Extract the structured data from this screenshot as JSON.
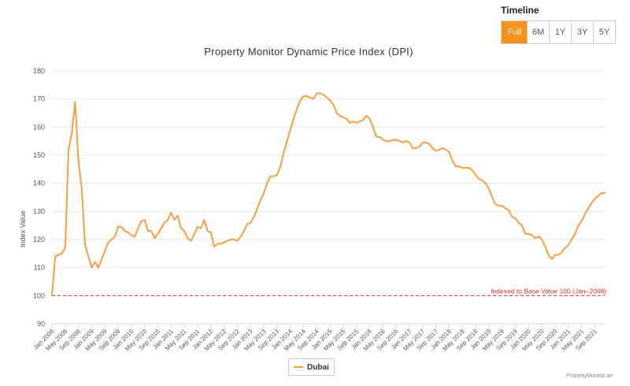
{
  "timeline": {
    "label": "Timeline",
    "buttons": [
      "Full",
      "6M",
      "1Y",
      "3Y",
      "5Y"
    ],
    "active": "Full"
  },
  "credit": "PropertyMonitor.ae",
  "colors": {
    "series": "#f0a04b",
    "baseline": "#d0342c",
    "active_button": "#f7931e"
  },
  "chart_data": {
    "type": "line",
    "title": "Property Monitor Dynamic Price Index (DPI)",
    "ylabel": "Index Value",
    "xlabel": "",
    "ylim": [
      90,
      180
    ],
    "yticks": [
      90,
      100,
      110,
      120,
      130,
      140,
      150,
      160,
      170,
      180
    ],
    "xlim": [
      "2008-01",
      "2021-12"
    ],
    "xticks": [
      "Jan 2008",
      "May 2008",
      "Sep 2008",
      "Jan 2009",
      "May 2009",
      "Sep 2009",
      "Jan 2010",
      "May 2010",
      "Sep 2010",
      "Jan 2011",
      "May 2011",
      "Sep 2011",
      "Jan 2012",
      "May 2012",
      "Sep 2012",
      "Jan 2013",
      "May 2013",
      "Sep 2013",
      "Jan 2014",
      "May 2014",
      "Sep 2014",
      "Jan 2015",
      "May 2015",
      "Sep 2015",
      "Jan 2016",
      "May 2016",
      "Sep 2016",
      "Jan 2017",
      "May 2017",
      "Sep 2017",
      "Jan 2018",
      "May 2018",
      "Sep 2018",
      "Jan 2019",
      "May 2019",
      "Sep 2019",
      "Jan 2020",
      "May 2020",
      "Sep 2020",
      "Jan 2021",
      "May 2021",
      "Sep 2021"
    ],
    "grid": true,
    "legend": "bottom-center",
    "baseline": {
      "value": 100,
      "label": "Indexed to Base Value 100 (Jan–2008)"
    },
    "series": [
      {
        "name": "Dubai",
        "points": [
          [
            "2008-01",
            100
          ],
          [
            "2008-02",
            114
          ],
          [
            "2008-03",
            114.5
          ],
          [
            "2008-04",
            115
          ],
          [
            "2008-05",
            117
          ],
          [
            "2008-06",
            152
          ],
          [
            "2008-07",
            158
          ],
          [
            "2008-08",
            169
          ],
          [
            "2008-09",
            148
          ],
          [
            "2008-10",
            138
          ],
          [
            "2008-11",
            118
          ],
          [
            "2008-12",
            114
          ],
          [
            "2009-01",
            110
          ],
          [
            "2009-02",
            112
          ],
          [
            "2009-03",
            110
          ],
          [
            "2009-04",
            113
          ],
          [
            "2009-05",
            116
          ],
          [
            "2009-06",
            119
          ],
          [
            "2009-07",
            120
          ],
          [
            "2009-08",
            121
          ],
          [
            "2009-09",
            124.5
          ],
          [
            "2009-10",
            124.5
          ],
          [
            "2009-11",
            123
          ],
          [
            "2009-12",
            122.5
          ],
          [
            "2010-01",
            121.5
          ],
          [
            "2010-02",
            121
          ],
          [
            "2010-03",
            124
          ],
          [
            "2010-04",
            126.5
          ],
          [
            "2010-05",
            127
          ],
          [
            "2010-06",
            123
          ],
          [
            "2010-07",
            123
          ],
          [
            "2010-08",
            120.5
          ],
          [
            "2010-09",
            122
          ],
          [
            "2010-10",
            124
          ],
          [
            "2010-11",
            126
          ],
          [
            "2010-12",
            127
          ],
          [
            "2011-01",
            129.5
          ],
          [
            "2011-02",
            127
          ],
          [
            "2011-03",
            128.5
          ],
          [
            "2011-04",
            124
          ],
          [
            "2011-05",
            123
          ],
          [
            "2011-06",
            120.5
          ],
          [
            "2011-07",
            119.5
          ],
          [
            "2011-08",
            122
          ],
          [
            "2011-09",
            124.5
          ],
          [
            "2011-10",
            124
          ],
          [
            "2011-11",
            127
          ],
          [
            "2011-12",
            123
          ],
          [
            "2012-01",
            122.5
          ],
          [
            "2012-02",
            117.5
          ],
          [
            "2012-03",
            118.5
          ],
          [
            "2012-04",
            118.5
          ],
          [
            "2012-05",
            119
          ],
          [
            "2012-06",
            119.5
          ],
          [
            "2012-07",
            120
          ],
          [
            "2012-08",
            120
          ],
          [
            "2012-09",
            119.5
          ],
          [
            "2012-10",
            121
          ],
          [
            "2012-11",
            123
          ],
          [
            "2012-12",
            125.5
          ],
          [
            "2013-01",
            126
          ],
          [
            "2013-02",
            128
          ],
          [
            "2013-03",
            131
          ],
          [
            "2013-04",
            134
          ],
          [
            "2013-05",
            136.5
          ],
          [
            "2013-06",
            140
          ],
          [
            "2013-07",
            142.5
          ],
          [
            "2013-08",
            142.5
          ],
          [
            "2013-09",
            143
          ],
          [
            "2013-10",
            146
          ],
          [
            "2013-11",
            151
          ],
          [
            "2013-12",
            155
          ],
          [
            "2014-01",
            159
          ],
          [
            "2014-02",
            163
          ],
          [
            "2014-03",
            166.5
          ],
          [
            "2014-04",
            169.5
          ],
          [
            "2014-05",
            171
          ],
          [
            "2014-06",
            171
          ],
          [
            "2014-07",
            170.5
          ],
          [
            "2014-08",
            170
          ],
          [
            "2014-09",
            172
          ],
          [
            "2014-10",
            172
          ],
          [
            "2014-11",
            171.5
          ],
          [
            "2014-12",
            170.5
          ],
          [
            "2015-01",
            169.5
          ],
          [
            "2015-02",
            168
          ],
          [
            "2015-03",
            165
          ],
          [
            "2015-04",
            164
          ],
          [
            "2015-05",
            163.5
          ],
          [
            "2015-06",
            163
          ],
          [
            "2015-07",
            161.5
          ],
          [
            "2015-08",
            162
          ],
          [
            "2015-09",
            161.5
          ],
          [
            "2015-10",
            162
          ],
          [
            "2015-11",
            162.5
          ],
          [
            "2015-12",
            164
          ],
          [
            "2016-01",
            163
          ],
          [
            "2016-02",
            160
          ],
          [
            "2016-03",
            156.5
          ],
          [
            "2016-04",
            156.5
          ],
          [
            "2016-05",
            155.5
          ],
          [
            "2016-06",
            155
          ],
          [
            "2016-07",
            155
          ],
          [
            "2016-08",
            155.5
          ],
          [
            "2016-09",
            155.5
          ],
          [
            "2016-10",
            155
          ],
          [
            "2016-11",
            154.5
          ],
          [
            "2016-12",
            155
          ],
          [
            "2017-01",
            154.5
          ],
          [
            "2017-02",
            152.5
          ],
          [
            "2017-03",
            152.5
          ],
          [
            "2017-04",
            153
          ],
          [
            "2017-05",
            154.5
          ],
          [
            "2017-06",
            154.5
          ],
          [
            "2017-07",
            154
          ],
          [
            "2017-08",
            152.5
          ],
          [
            "2017-09",
            151.5
          ],
          [
            "2017-10",
            152
          ],
          [
            "2017-11",
            152.5
          ],
          [
            "2017-12",
            152
          ],
          [
            "2018-01",
            151
          ],
          [
            "2018-02",
            148
          ],
          [
            "2018-03",
            146
          ],
          [
            "2018-04",
            146
          ],
          [
            "2018-05",
            145.5
          ],
          [
            "2018-06",
            145.5
          ],
          [
            "2018-07",
            145.5
          ],
          [
            "2018-08",
            144.5
          ],
          [
            "2018-09",
            143
          ],
          [
            "2018-10",
            141.5
          ],
          [
            "2018-11",
            141
          ],
          [
            "2018-12",
            140
          ],
          [
            "2019-01",
            138
          ],
          [
            "2019-02",
            135
          ],
          [
            "2019-03",
            132.5
          ],
          [
            "2019-04",
            132
          ],
          [
            "2019-05",
            132
          ],
          [
            "2019-06",
            131
          ],
          [
            "2019-07",
            130.5
          ],
          [
            "2019-08",
            128
          ],
          [
            "2019-09",
            127.5
          ],
          [
            "2019-10",
            126
          ],
          [
            "2019-11",
            125
          ],
          [
            "2019-12",
            122
          ],
          [
            "2020-01",
            122
          ],
          [
            "2020-02",
            121.5
          ],
          [
            "2020-03",
            120.5
          ],
          [
            "2020-04",
            121
          ],
          [
            "2020-05",
            120
          ],
          [
            "2020-06",
            117.5
          ],
          [
            "2020-07",
            114.5
          ],
          [
            "2020-08",
            113
          ],
          [
            "2020-09",
            114.5
          ],
          [
            "2020-10",
            114.5
          ],
          [
            "2020-11",
            115.5
          ],
          [
            "2020-12",
            117
          ],
          [
            "2021-01",
            118
          ],
          [
            "2021-02",
            120
          ],
          [
            "2021-03",
            122
          ],
          [
            "2021-04",
            125
          ],
          [
            "2021-05",
            126.5
          ],
          [
            "2021-06",
            129
          ],
          [
            "2021-07",
            131
          ],
          [
            "2021-08",
            133
          ],
          [
            "2021-09",
            134.5
          ],
          [
            "2021-10",
            135.5
          ],
          [
            "2021-11",
            136.5
          ],
          [
            "2021-12",
            136.5
          ]
        ]
      }
    ]
  }
}
